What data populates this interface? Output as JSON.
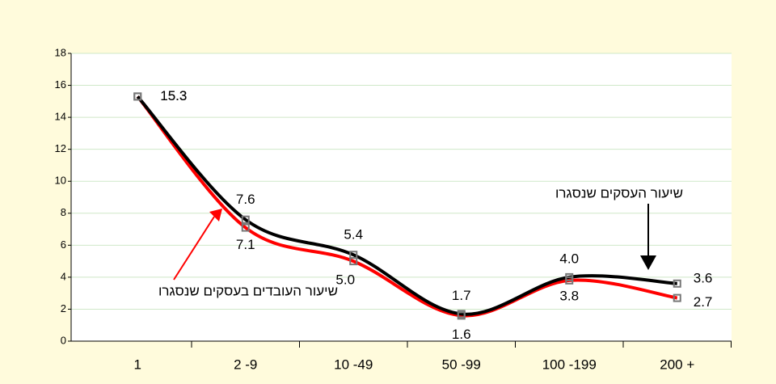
{
  "chart_data": {
    "type": "line",
    "categories": [
      "1",
      "2 -9",
      "10 -49",
      "50 -99",
      "100 -199",
      "200 +"
    ],
    "series": [
      {
        "name": "שיעור העסקים שנסגרו",
        "color": "#000000",
        "values": [
          15.3,
          7.6,
          5.4,
          1.7,
          4.0,
          3.6
        ],
        "value_labels": [
          "15.3",
          "7.6",
          "5.4",
          "1.7",
          "4.0",
          "3.6"
        ]
      },
      {
        "name": "שיעור העובדים בעסקים שנסגרו",
        "color": "#ff0000",
        "values": [
          15.3,
          7.1,
          5.0,
          1.6,
          3.8,
          2.7
        ],
        "value_labels": [
          "15.3",
          "7.1",
          "5.0",
          "1.6",
          "3.8",
          "2.7"
        ]
      }
    ],
    "ylim": [
      0,
      18
    ],
    "yticks": [
      0,
      2,
      4,
      6,
      8,
      10,
      12,
      14,
      16,
      18
    ],
    "grid": true
  }
}
